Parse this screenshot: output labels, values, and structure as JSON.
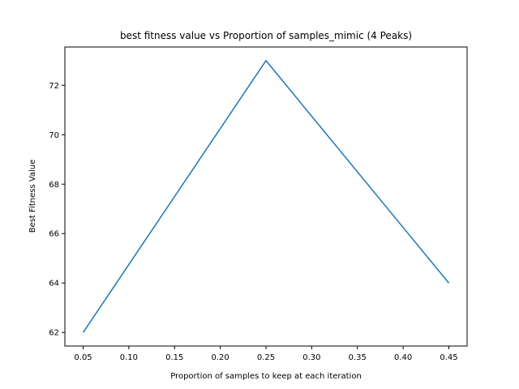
{
  "chart_data": {
    "type": "line",
    "title": "best fitness value vs Proportion of samples_mimic (4 Peaks)",
    "xlabel": "Proportion of samples to keep at each iteration",
    "ylabel": "Best Fitness Value",
    "x": [
      0.05,
      0.25,
      0.45
    ],
    "series": [
      {
        "values": [
          62,
          73,
          64
        ],
        "color": "#1f77b4"
      }
    ],
    "xlim": [
      0.03,
      0.47
    ],
    "ylim": [
      61.45,
      73.55
    ],
    "xticks": [
      0.05,
      0.1,
      0.15,
      0.2,
      0.25,
      0.3,
      0.35,
      0.4,
      0.45
    ],
    "xtick_labels": [
      "0.05",
      "0.10",
      "0.15",
      "0.20",
      "0.25",
      "0.30",
      "0.35",
      "0.40",
      "0.45"
    ],
    "yticks": [
      62,
      64,
      66,
      68,
      70,
      72
    ],
    "ytick_labels": [
      "62",
      "64",
      "66",
      "68",
      "70",
      "72"
    ],
    "grid": false,
    "legend": "none"
  }
}
